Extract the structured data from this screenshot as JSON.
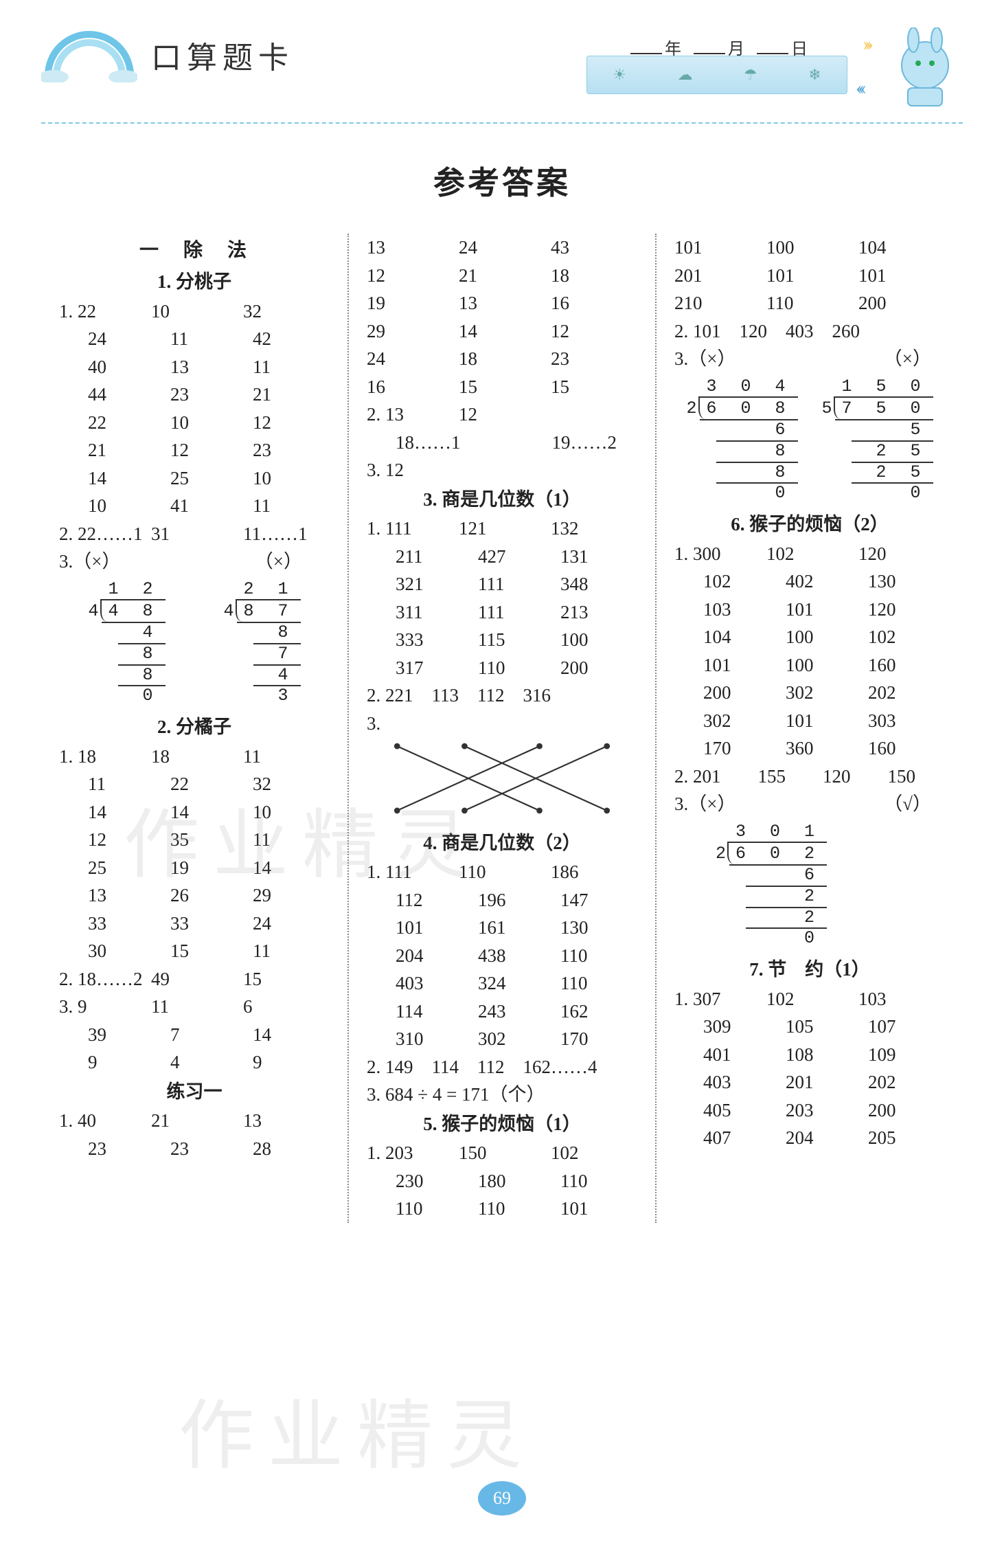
{
  "header": {
    "book_title": "口算题卡",
    "date_year": "年",
    "date_month": "月",
    "date_day": "日",
    "weather_icons": [
      "☀",
      "☁",
      "☂",
      "❄"
    ]
  },
  "main_title": "参考答案",
  "watermarks": [
    "作业精灵",
    "作业精灵"
  ],
  "page_number": "69",
  "col1": {
    "chapter": "一　除　法",
    "s1": {
      "title": "1. 分桃子",
      "q1_rows": [
        [
          "1. 22",
          "10",
          "32"
        ],
        [
          "24",
          "11",
          "42"
        ],
        [
          "40",
          "13",
          "11"
        ],
        [
          "44",
          "23",
          "21"
        ],
        [
          "22",
          "10",
          "12"
        ],
        [
          "21",
          "12",
          "23"
        ],
        [
          "14",
          "25",
          "10"
        ],
        [
          "10",
          "41",
          "11"
        ]
      ],
      "q2": [
        "2. 22……1",
        "31",
        "11……1"
      ],
      "q3_label_a": "3.（×）",
      "q3_label_b": "（×）",
      "divA": {
        "divisor": "4",
        "dividend": "4 8",
        "quotient": "1 2",
        "steps": [
          "4",
          "8",
          "8",
          "0"
        ]
      },
      "divB": {
        "divisor": "4",
        "dividend": "8 7",
        "quotient": "2 1",
        "steps": [
          "8",
          "7",
          "4",
          "3"
        ]
      }
    },
    "s2": {
      "title": "2. 分橘子",
      "q1_rows": [
        [
          "1. 18",
          "18",
          "11"
        ],
        [
          "11",
          "22",
          "32"
        ],
        [
          "14",
          "14",
          "10"
        ],
        [
          "12",
          "35",
          "11"
        ],
        [
          "25",
          "19",
          "14"
        ],
        [
          "13",
          "26",
          "29"
        ],
        [
          "33",
          "33",
          "24"
        ],
        [
          "30",
          "15",
          "11"
        ]
      ],
      "q2": [
        "2. 18……2",
        "49",
        "15"
      ],
      "q3_rows": [
        [
          "3. 9",
          "11",
          "6"
        ],
        [
          "39",
          "7",
          "14"
        ],
        [
          "9",
          "4",
          "9"
        ]
      ]
    },
    "s3": {
      "title": "练习一",
      "rows": [
        [
          "1. 40",
          "21",
          "13"
        ],
        [
          "23",
          "23",
          "28"
        ]
      ]
    }
  },
  "col2": {
    "cont_rows": [
      [
        "13",
        "24",
        "43"
      ],
      [
        "12",
        "21",
        "18"
      ],
      [
        "19",
        "13",
        "16"
      ],
      [
        "29",
        "14",
        "12"
      ],
      [
        "24",
        "18",
        "23"
      ],
      [
        "16",
        "15",
        "15"
      ]
    ],
    "q2a": [
      "2. 13",
      "12"
    ],
    "q2b": [
      "18……1",
      "19……2"
    ],
    "q3": "3. 12",
    "s3": {
      "title": "3. 商是几位数（1）",
      "q1_rows": [
        [
          "1. 111",
          "121",
          "132"
        ],
        [
          "211",
          "427",
          "131"
        ],
        [
          "321",
          "111",
          "348"
        ],
        [
          "311",
          "111",
          "213"
        ],
        [
          "333",
          "115",
          "100"
        ],
        [
          "317",
          "110",
          "200"
        ]
      ],
      "q2": "2. 221　113　112　316",
      "q3": "3."
    },
    "s4": {
      "title": "4. 商是几位数（2）",
      "q1_rows": [
        [
          "1. 111",
          "110",
          "186"
        ],
        [
          "112",
          "196",
          "147"
        ],
        [
          "101",
          "161",
          "130"
        ],
        [
          "204",
          "438",
          "110"
        ],
        [
          "403",
          "324",
          "110"
        ],
        [
          "114",
          "243",
          "162"
        ],
        [
          "310",
          "302",
          "170"
        ]
      ],
      "q2": "2. 149　114　112　162……4",
      "q3": "3. 684 ÷ 4 = 171（个）"
    },
    "s5": {
      "title": "5. 猴子的烦恼（1）",
      "rows": [
        [
          "1. 203",
          "150",
          "102"
        ],
        [
          "230",
          "180",
          "110"
        ],
        [
          "110",
          "110",
          "101"
        ]
      ]
    }
  },
  "col3": {
    "cont_rows": [
      [
        "101",
        "100",
        "104"
      ],
      [
        "201",
        "101",
        "101"
      ],
      [
        "210",
        "110",
        "200"
      ]
    ],
    "q2": "2. 101　120　403　260",
    "q3_label_a": "3.（×）",
    "q3_label_b": "（×）",
    "divA": {
      "divisor": "2",
      "dividend": "6 0 8",
      "quotient": "3 0 4",
      "steps": [
        "6",
        "8",
        "8",
        "0"
      ]
    },
    "divB": {
      "divisor": "5",
      "dividend": "7 5 0",
      "quotient": "1 5 0",
      "steps": [
        "5",
        "2 5",
        "2 5",
        "0"
      ]
    },
    "s6": {
      "title": "6. 猴子的烦恼（2）",
      "q1_rows": [
        [
          "1. 300",
          "102",
          "120"
        ],
        [
          "102",
          "402",
          "130"
        ],
        [
          "103",
          "101",
          "120"
        ],
        [
          "104",
          "100",
          "102"
        ],
        [
          "101",
          "100",
          "160"
        ],
        [
          "200",
          "302",
          "202"
        ],
        [
          "302",
          "101",
          "303"
        ],
        [
          "170",
          "360",
          "160"
        ]
      ],
      "q2": "2. 201　　155　　120　　150",
      "q3_label_a": "3.（×）",
      "q3_label_b": "（√）",
      "divC": {
        "divisor": "2",
        "dividend": "6 0 2",
        "quotient": "3 0 1",
        "steps": [
          "6",
          "2",
          "2",
          "0"
        ]
      }
    },
    "s7": {
      "title": "7. 节　约（1）",
      "rows": [
        [
          "1. 307",
          "102",
          "103"
        ],
        [
          "309",
          "105",
          "107"
        ],
        [
          "401",
          "108",
          "109"
        ],
        [
          "403",
          "201",
          "202"
        ],
        [
          "405",
          "203",
          "200"
        ],
        [
          "407",
          "204",
          "205"
        ]
      ]
    }
  }
}
